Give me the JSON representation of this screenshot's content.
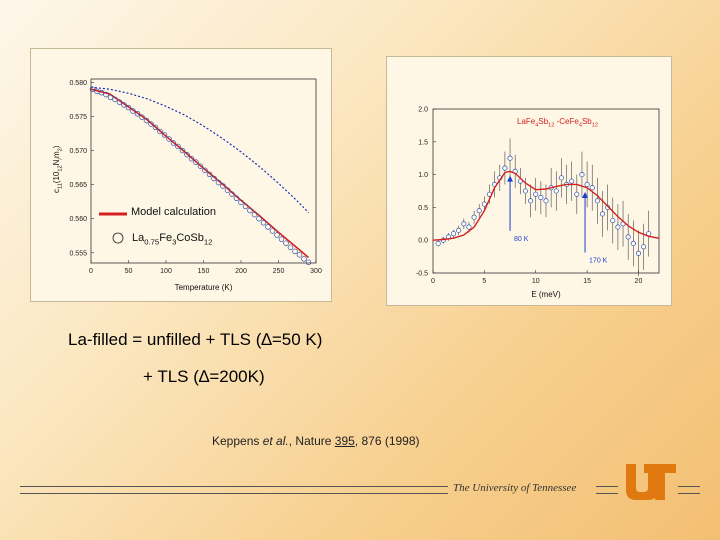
{
  "chart_data": [
    {
      "type": "scatter",
      "xlabel": "Temperature (K)",
      "ylabel_parts": [
        "c",
        "11",
        "(10",
        "12",
        "N",
        "/",
        "m",
        "2",
        ")"
      ],
      "xlim": [
        0,
        300
      ],
      "ylim": [
        0.5535,
        0.5805
      ],
      "xticks": [
        0,
        50,
        100,
        150,
        200,
        250,
        300
      ],
      "yticks": [
        0.555,
        0.56,
        0.565,
        0.57,
        0.575,
        0.58
      ],
      "ytick_labels": [
        "0.555",
        "0.560",
        "0.565",
        "0.570",
        "0.575",
        "0.580"
      ],
      "legend_model": "Model calculation",
      "legend_sample_parts": [
        "La",
        "0.75",
        "Fe",
        "3",
        "CoSb",
        "12"
      ],
      "points": {
        "x": [
          2,
          8,
          14,
          20,
          26,
          32,
          38,
          44,
          50,
          56,
          62,
          68,
          74,
          80,
          86,
          92,
          98,
          104,
          110,
          116,
          122,
          128,
          134,
          140,
          146,
          152,
          158,
          164,
          170,
          176,
          182,
          188,
          194,
          200,
          206,
          212,
          218,
          224,
          230,
          236,
          242,
          248,
          254,
          260,
          266,
          272,
          278,
          284,
          290
        ],
        "y": [
          0.579,
          0.5787,
          0.5785,
          0.5782,
          0.5778,
          0.5775,
          0.5771,
          0.5767,
          0.5763,
          0.5758,
          0.5754,
          0.5749,
          0.5744,
          0.5739,
          0.5734,
          0.5728,
          0.5723,
          0.5717,
          0.5711,
          0.5706,
          0.57,
          0.5694,
          0.5688,
          0.5683,
          0.5677,
          0.5671,
          0.5665,
          0.5659,
          0.5653,
          0.5648,
          0.5642,
          0.5636,
          0.563,
          0.5624,
          0.5618,
          0.5612,
          0.5606,
          0.56,
          0.5594,
          0.5588,
          0.5582,
          0.5576,
          0.557,
          0.5564,
          0.5558,
          0.5552,
          0.5547,
          0.5541,
          0.5536
        ]
      },
      "lines": [
        {
          "style": "solid",
          "color": "#d42020",
          "x": [
            0,
            25,
            50,
            75,
            100,
            125,
            150,
            175,
            200,
            225,
            250,
            275,
            290
          ],
          "y": [
            0.579,
            0.5783,
            0.5764,
            0.5745,
            0.5721,
            0.5698,
            0.5674,
            0.5651,
            0.5627,
            0.5604,
            0.558,
            0.5557,
            0.5543
          ]
        },
        {
          "style": "dotted",
          "color": "#1a2fb0",
          "x": [
            0,
            25,
            50,
            75,
            100,
            125,
            150,
            175,
            200,
            225,
            250,
            275,
            290
          ],
          "y": [
            0.5793,
            0.579,
            0.5784,
            0.5776,
            0.5765,
            0.5752,
            0.5736,
            0.5718,
            0.5698,
            0.5676,
            0.5652,
            0.5626,
            0.5609
          ]
        }
      ]
    },
    {
      "type": "scatter",
      "xlabel": "E (meV)",
      "legend_parts": [
        "LaFe",
        "4",
        "Sb",
        "12",
        " -CeFe",
        "4",
        "Sb",
        "12"
      ],
      "xlim": [
        0,
        22
      ],
      "ylim": [
        -0.5,
        2.0
      ],
      "xticks": [
        0,
        5,
        10,
        15,
        20
      ],
      "yticks": [
        -0.5,
        0.0,
        0.5,
        1.0,
        1.5,
        2.0
      ],
      "ytick_labels": [
        "-0.5",
        "0.0",
        "0.5",
        "1.0",
        "1.5",
        "2.0"
      ],
      "annotations": [
        {
          "text": "80 K",
          "x": 7.5,
          "y": 0.05,
          "arrow_to": [
            7.5,
            1.0
          ]
        },
        {
          "text": "170 K",
          "x": 14.8,
          "y": -0.28,
          "arrow_to": [
            14.8,
            0.75
          ]
        }
      ],
      "points": {
        "x": [
          0.5,
          1.0,
          1.5,
          2.0,
          2.5,
          3.0,
          3.5,
          4.0,
          4.5,
          5.0,
          5.5,
          6.0,
          6.5,
          7.0,
          7.5,
          8.0,
          8.5,
          9.0,
          9.5,
          10.0,
          10.5,
          11.0,
          11.5,
          12.0,
          12.5,
          13.0,
          13.5,
          14.0,
          14.5,
          15.0,
          15.5,
          16.0,
          16.5,
          17.0,
          17.5,
          18.0,
          18.5,
          19.0,
          19.5,
          20.0,
          20.5,
          21.0
        ],
        "y": [
          -0.05,
          0.0,
          0.05,
          0.1,
          0.15,
          0.25,
          0.2,
          0.35,
          0.45,
          0.55,
          0.7,
          0.85,
          0.95,
          1.1,
          1.25,
          1.05,
          0.9,
          0.75,
          0.6,
          0.7,
          0.65,
          0.6,
          0.8,
          0.75,
          0.95,
          0.85,
          0.9,
          0.7,
          1.0,
          0.85,
          0.8,
          0.6,
          0.4,
          0.5,
          0.3,
          0.2,
          0.25,
          0.05,
          -0.05,
          -0.2,
          -0.1,
          0.1
        ],
        "err": [
          0.05,
          0.05,
          0.06,
          0.06,
          0.07,
          0.08,
          0.08,
          0.1,
          0.1,
          0.12,
          0.15,
          0.2,
          0.2,
          0.25,
          0.3,
          0.25,
          0.2,
          0.2,
          0.25,
          0.25,
          0.25,
          0.25,
          0.3,
          0.3,
          0.3,
          0.3,
          0.3,
          0.3,
          0.35,
          0.35,
          0.35,
          0.35,
          0.35,
          0.35,
          0.35,
          0.35,
          0.35,
          0.35,
          0.35,
          0.35,
          0.35,
          0.35
        ]
      },
      "lines": [
        {
          "style": "solid",
          "color": "#d42020",
          "x": [
            0,
            1,
            2,
            3,
            4,
            5,
            6,
            7,
            7.5,
            8,
            9,
            10,
            11,
            12,
            13,
            14,
            15,
            16,
            17,
            18,
            19,
            20,
            21,
            22
          ],
          "y": [
            0.0,
            0.01,
            0.03,
            0.08,
            0.2,
            0.45,
            0.8,
            1.03,
            1.05,
            1.02,
            0.87,
            0.77,
            0.78,
            0.82,
            0.85,
            0.85,
            0.8,
            0.68,
            0.52,
            0.36,
            0.22,
            0.12,
            0.06,
            0.03
          ]
        }
      ]
    }
  ],
  "caption": {
    "line1_pre": "La-filled = unfilled + TLS (",
    "delta": "∆",
    "line1_post": "=50 K)",
    "line2_pre": "+ TLS (",
    "line2_post": "=200K)"
  },
  "citation": {
    "authors": "Keppens ",
    "etal": "et al.",
    "journal": ", Nature ",
    "volume": "395",
    "pages": ", 876 (1998)"
  },
  "footer": {
    "university": "The University of Tennessee",
    "logo_text": "UT"
  },
  "colors": {
    "model_red": "#d42020",
    "dotted_blue": "#1a2fb0",
    "annotation_blue": "#1a3fd0",
    "logo_orange": "#e07a10"
  }
}
